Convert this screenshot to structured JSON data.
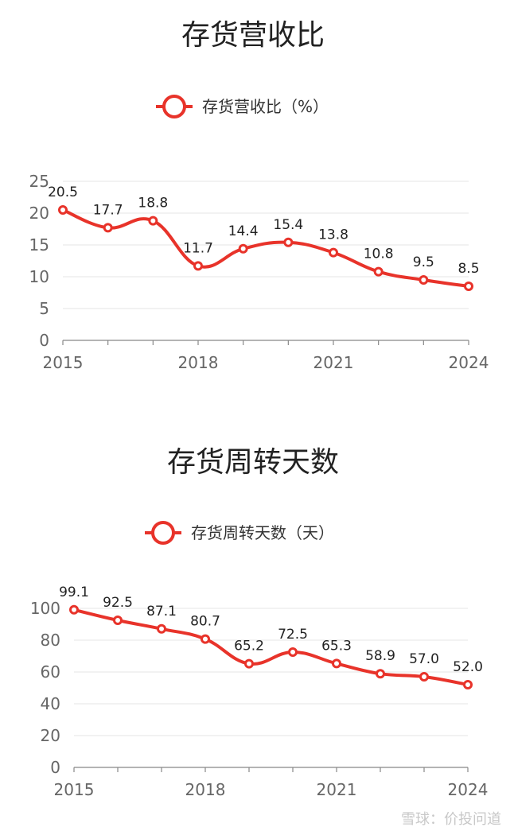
{
  "chart_data": [
    {
      "type": "line",
      "title": "存货营收比",
      "legend": "存货营收比（%）",
      "legend_position": "top-center",
      "color": "#e8332a",
      "x": [
        "2015",
        "2016",
        "2017",
        "2018",
        "2019",
        "2020",
        "2021",
        "2022",
        "2023",
        "2024"
      ],
      "x_tick_labels": [
        "2015",
        "2018",
        "2021",
        "2024"
      ],
      "y_ticks": [
        0,
        5,
        10,
        15,
        20,
        25
      ],
      "ylim": [
        0,
        25
      ],
      "grid": true,
      "series": [
        {
          "name": "存货营收比（%）",
          "values": [
            20.5,
            17.7,
            18.8,
            11.7,
            14.4,
            15.4,
            13.8,
            10.8,
            9.5,
            8.5
          ],
          "labels": [
            "20.5",
            "17.7",
            "18.8",
            "11.7",
            "14.4",
            "15.4",
            "13.8",
            "10.8",
            "9.5",
            "8.5"
          ]
        }
      ]
    },
    {
      "type": "line",
      "title": "存货周转天数",
      "legend": "存货周转天数（天）",
      "legend_position": "top-center",
      "color": "#e8332a",
      "x": [
        "2015",
        "2016",
        "2017",
        "2018",
        "2019",
        "2020",
        "2021",
        "2022",
        "2023",
        "2024"
      ],
      "x_tick_labels": [
        "2015",
        "2018",
        "2021",
        "2024"
      ],
      "y_ticks": [
        0,
        20,
        40,
        60,
        80,
        100
      ],
      "ylim": [
        0,
        100
      ],
      "grid": true,
      "series": [
        {
          "name": "存货周转天数（天）",
          "values": [
            99.1,
            92.5,
            87.1,
            80.7,
            65.2,
            72.5,
            65.3,
            58.9,
            57.0,
            52.0
          ],
          "labels": [
            "99.1",
            "92.5",
            "87.1",
            "80.7",
            "65.2",
            "72.5",
            "65.3",
            "58.9",
            "57.0",
            "52.0"
          ]
        }
      ]
    }
  ],
  "watermark": "雪球：价投问道"
}
